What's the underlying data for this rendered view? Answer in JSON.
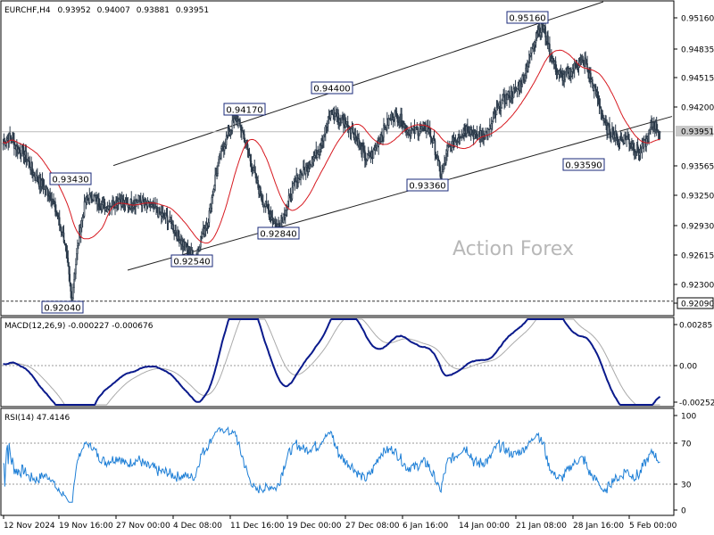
{
  "chart_data": [
    {
      "panel": "price",
      "type": "candlestick",
      "symbol_label": "EURCHF,H4",
      "ohlc": [
        "0.93952",
        "0.94007",
        "0.93881",
        "0.93951"
      ],
      "watermark": "Action Forex",
      "ylim": [
        0.9195,
        0.9537
      ],
      "y_ticks": [
        "0.95160",
        "0.94835",
        "0.94515",
        "0.94200",
        "0.93565",
        "0.93250",
        "0.92930",
        "0.92615",
        "0.92300",
        "0.92090"
      ],
      "current_price": "0.93951",
      "support_line": "0.92090",
      "annotations": [
        {
          "label": "0.95160",
          "value": 0.9516
        },
        {
          "label": "0.94400",
          "value": 0.944
        },
        {
          "label": "0.94170",
          "value": 0.9417
        },
        {
          "label": "0.93430",
          "value": 0.9343
        },
        {
          "label": "0.93360",
          "value": 0.9336
        },
        {
          "label": "0.93590",
          "value": 0.9359
        },
        {
          "label": "0.92840",
          "value": 0.9284
        },
        {
          "label": "0.92540",
          "value": 0.9254
        },
        {
          "label": "0.92040",
          "value": 0.9204
        }
      ],
      "price_path": [
        0.9383,
        0.939,
        0.9377,
        0.9372,
        0.9357,
        0.9342,
        0.9334,
        0.9325,
        0.93,
        0.9275,
        0.921,
        0.9275,
        0.9318,
        0.9325,
        0.9317,
        0.9312,
        0.9316,
        0.9321,
        0.9314,
        0.9318,
        0.932,
        0.9314,
        0.9312,
        0.9304,
        0.93,
        0.9288,
        0.9275,
        0.9265,
        0.9255,
        0.928,
        0.93,
        0.9345,
        0.9375,
        0.9395,
        0.941,
        0.9395,
        0.9368,
        0.934,
        0.9318,
        0.9305,
        0.929,
        0.9303,
        0.9325,
        0.9345,
        0.9352,
        0.9362,
        0.9375,
        0.9395,
        0.9418,
        0.941,
        0.9405,
        0.9398,
        0.9382,
        0.9365,
        0.937,
        0.9388,
        0.9402,
        0.9415,
        0.941,
        0.9398,
        0.9395,
        0.9398,
        0.94,
        0.938,
        0.9345,
        0.9375,
        0.9385,
        0.9395,
        0.94,
        0.939,
        0.9392,
        0.9395,
        0.9415,
        0.943,
        0.9435,
        0.944,
        0.9455,
        0.9478,
        0.9505,
        0.951,
        0.948,
        0.946,
        0.9455,
        0.9462,
        0.947,
        0.9472,
        0.945,
        0.943,
        0.94,
        0.9395,
        0.9385,
        0.939,
        0.938,
        0.9372,
        0.9385,
        0.9405,
        0.9395
      ],
      "channel": {
        "upper": [
          0.9358,
          0.9538
        ],
        "lower": [
          0.9243,
          0.9412
        ]
      }
    },
    {
      "panel": "macd",
      "type": "line",
      "label": "MACD(12,26,9) -0.000227 -0.000676",
      "y_ticks": [
        "0.00285",
        "0.00",
        "-0.002521"
      ],
      "ylim": [
        -0.0028,
        0.0031
      ]
    },
    {
      "panel": "rsi",
      "type": "line",
      "label": "RSI(14) 47.4146",
      "y_ticks": [
        "100",
        "70",
        "30",
        "0"
      ],
      "ylim": [
        0,
        100
      ],
      "levels": [
        30,
        70
      ]
    }
  ],
  "x_ticks": [
    "12 Nov 2024",
    "19 Nov 16:00",
    "27 Nov 00:00",
    "4 Dec 08:00",
    "11 Dec 16:00",
    "19 Dec 00:00",
    "27 Dec 08:00",
    "6 Jan 16:00",
    "14 Jan 00:00",
    "21 Jan 08:00",
    "28 Jan 16:00",
    "5 Feb 00:00"
  ],
  "colors": {
    "candle": "#2b3a4a",
    "ma": "#d71920",
    "macd": "#0a1a8c",
    "signal": "#aaaaaa",
    "rsi": "#1e7fd6",
    "channel": "#222222",
    "current_label_bg": "#c8c8c8"
  }
}
